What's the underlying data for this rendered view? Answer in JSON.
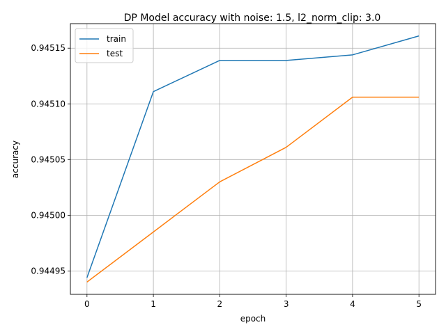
{
  "chart_data": {
    "type": "line",
    "title": "DP Model accuracy with noise: 1.5, l2_norm_clip: 3.0",
    "xlabel": "epoch",
    "ylabel": "accuracy",
    "x": [
      0,
      1,
      2,
      3,
      4,
      5
    ],
    "xlim": [
      -0.25,
      5.25
    ],
    "ylim": [
      0.944929,
      0.945172
    ],
    "xticks": [
      0,
      1,
      2,
      3,
      4,
      5
    ],
    "xtick_labels": [
      "0",
      "1",
      "2",
      "3",
      "4",
      "5"
    ],
    "yticks": [
      0.94495,
      0.945,
      0.94505,
      0.9451,
      0.94515
    ],
    "ytick_labels": [
      "0.94495",
      "0.94500",
      "0.94505",
      "0.94510",
      "0.94515"
    ],
    "grid": true,
    "legend_position": "top-left",
    "series": [
      {
        "name": "train",
        "color": "#1f77b4",
        "values": [
          0.944944,
          0.945111,
          0.945139,
          0.945139,
          0.945144,
          0.945161
        ]
      },
      {
        "name": "test",
        "color": "#ff7f0e",
        "values": [
          0.94494,
          0.944985,
          0.94503,
          0.945061,
          0.945106,
          0.945106
        ]
      }
    ]
  }
}
